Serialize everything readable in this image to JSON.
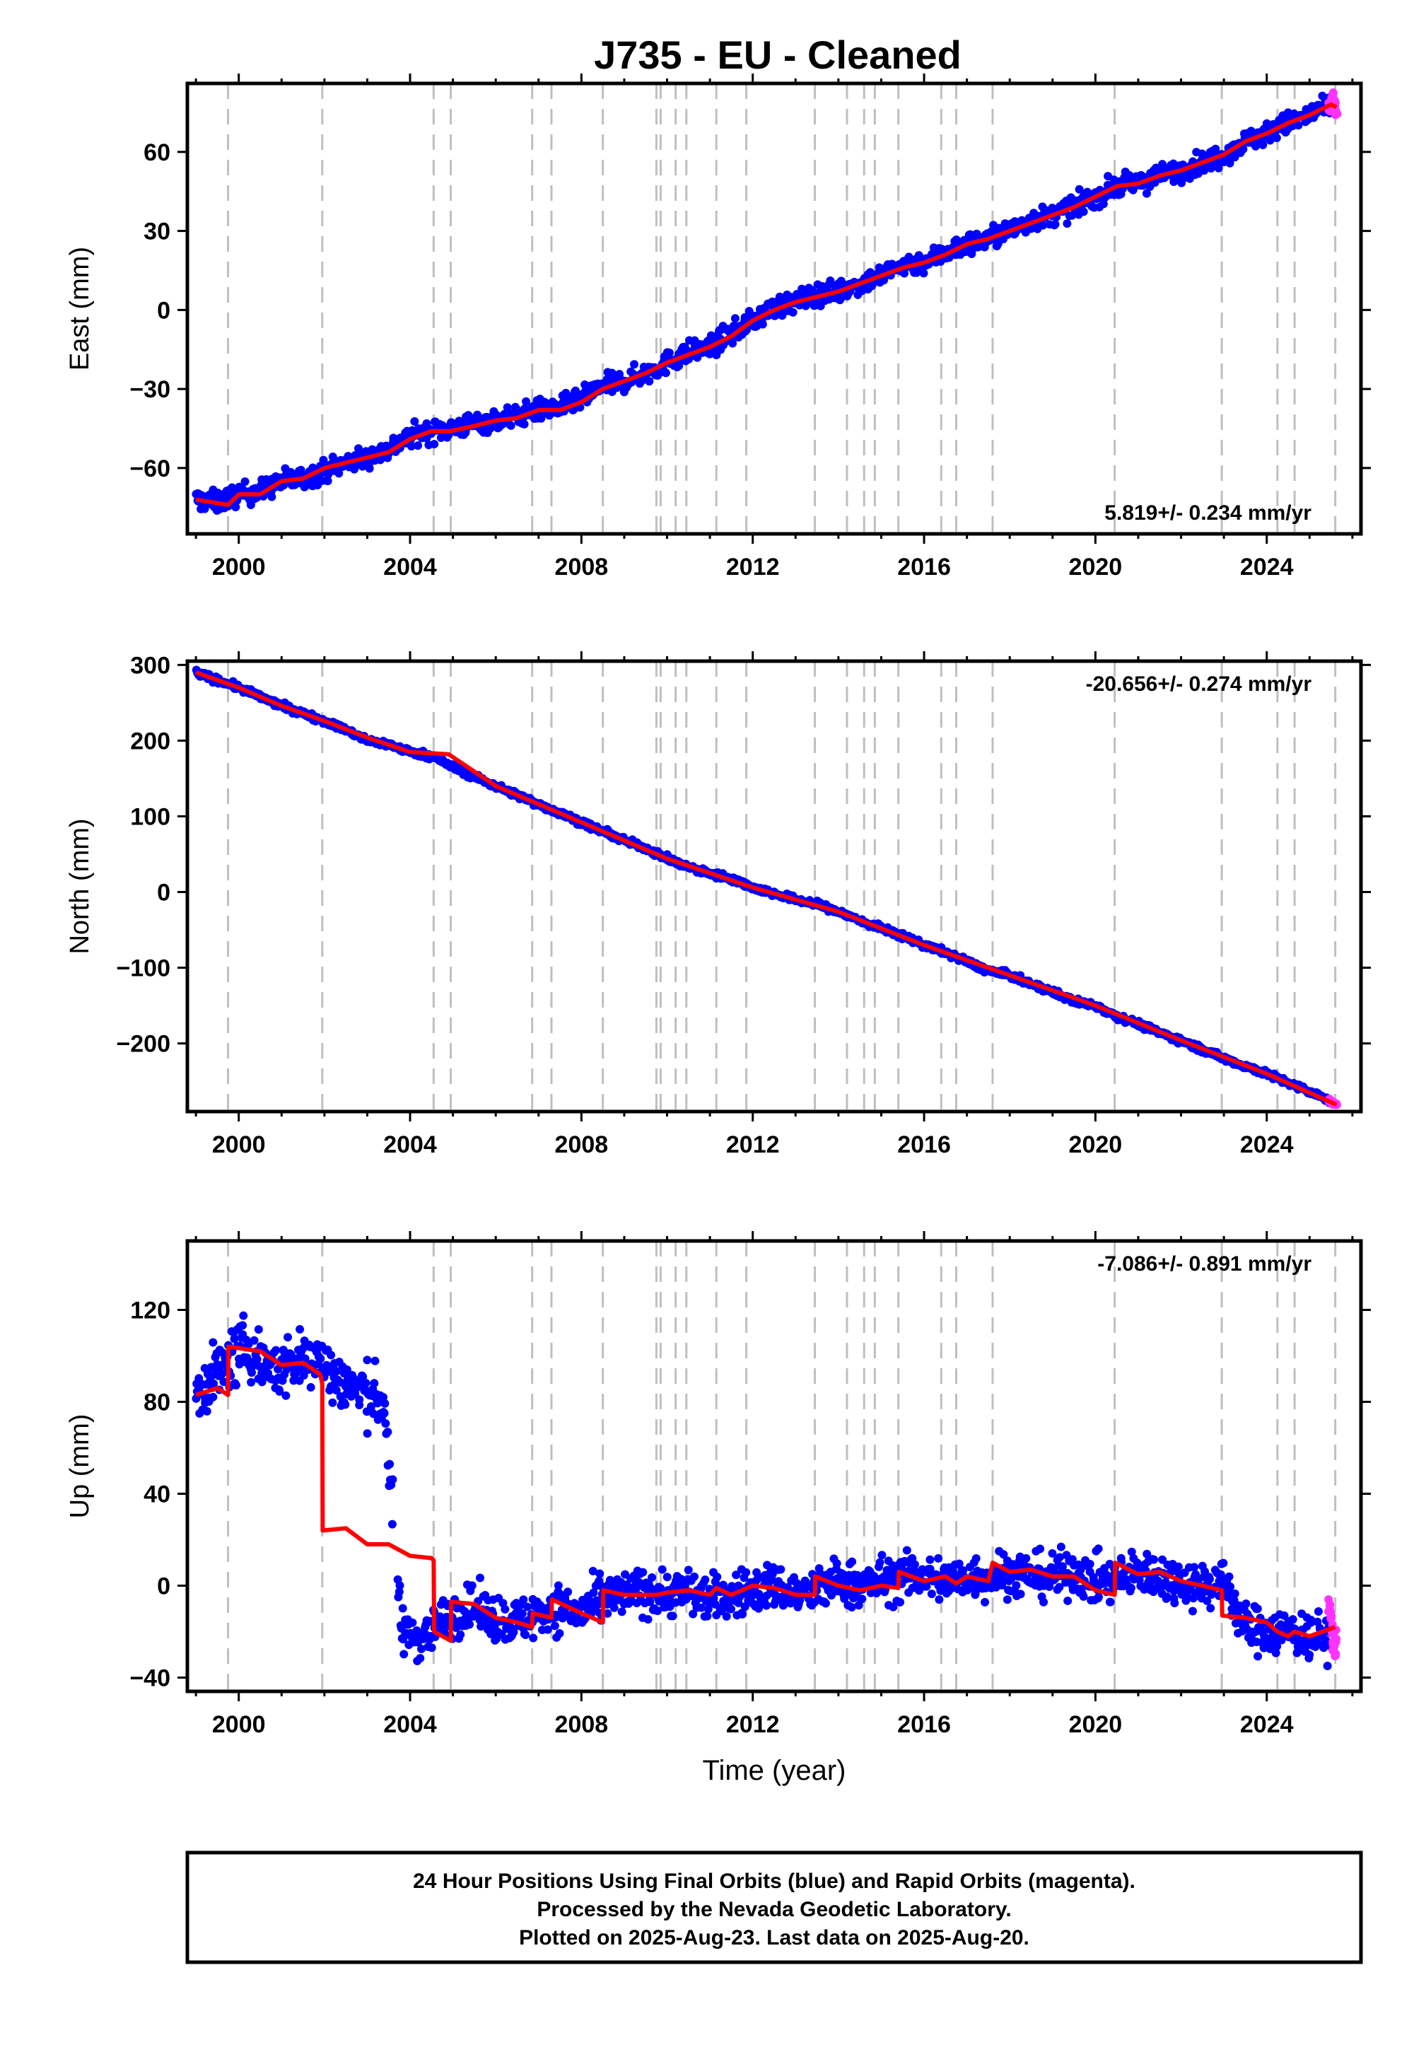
{
  "colors": {
    "final": "#0000ff",
    "rapid": "#ff33ff",
    "model": "#ff0000",
    "steps": "#bfbfbf",
    "frame": "#000000"
  },
  "footer": {
    "line1": "24 Hour Positions Using Final Orbits (blue) and Rapid Orbits (magenta).",
    "line2": "Processed by the Nevada Geodetic Laboratory.",
    "line3": "Plotted on 2025-Aug-23. Last data on 2025-Aug-20."
  },
  "chart_data": [
    {
      "type": "scatter",
      "title": "J735  - EU - Cleaned",
      "ylabel": "East (mm)",
      "xlabel": "",
      "xlim": [
        1998.8,
        2026.2
      ],
      "ylim": [
        -85,
        86
      ],
      "x_ticks": [
        2000,
        2004,
        2008,
        2012,
        2016,
        2020,
        2024
      ],
      "y_ticks": [
        -60,
        -30,
        0,
        30,
        60
      ],
      "rate_label": "5.819+/- 0.234 mm/yr",
      "rate_position": "bottom-right",
      "grid": false,
      "step_epochs": [
        1999.75,
        2001.95,
        2004.55,
        2004.95,
        2006.85,
        2007.3,
        2008.5,
        2009.75,
        2009.85,
        2010.2,
        2010.45,
        2011.15,
        2011.85,
        2013.45,
        2014.2,
        2014.6,
        2014.85,
        2015.4,
        2016.4,
        2016.75,
        2017.6,
        2020.45,
        2022.95,
        2024.25,
        2024.65,
        2025.6
      ],
      "series": [
        {
          "name": "Final Orbits (blue)",
          "x": [
            1999.0,
            1999.5,
            2000.0,
            2000.5,
            2001.0,
            2001.5,
            2002.0,
            2002.5,
            2003.0,
            2003.5,
            2004.0,
            2004.5,
            2005.0,
            2005.5,
            2006.0,
            2006.5,
            2007.0,
            2007.5,
            2008.0,
            2008.5,
            2009.0,
            2009.5,
            2010.0,
            2010.5,
            2011.0,
            2011.5,
            2012.0,
            2012.5,
            2013.0,
            2013.5,
            2014.0,
            2014.5,
            2015.0,
            2015.5,
            2016.0,
            2016.5,
            2017.0,
            2017.5,
            2018.0,
            2018.5,
            2019.0,
            2019.5,
            2020.0,
            2020.5,
            2021.0,
            2021.5,
            2022.0,
            2022.5,
            2023.0,
            2023.5,
            2024.0,
            2024.5,
            2025.0,
            2025.5
          ],
          "y": [
            -72,
            -73,
            -70,
            -69,
            -65,
            -64,
            -61,
            -58,
            -56,
            -53,
            -48,
            -46,
            -45,
            -43,
            -42,
            -40,
            -38,
            -37,
            -34,
            -29,
            -27,
            -24,
            -20,
            -16,
            -14,
            -9,
            -4,
            1,
            3,
            6,
            7,
            10,
            13,
            17,
            18,
            22,
            25,
            27,
            30,
            34,
            36,
            39,
            43,
            47,
            48,
            51,
            53,
            56,
            59,
            64,
            67,
            71,
            74,
            78
          ],
          "spread": 4
        },
        {
          "name": "Rapid Orbits (magenta)",
          "x": [
            2025.45,
            2025.5,
            2025.55,
            2025.6,
            2025.63
          ],
          "y": [
            76,
            79,
            81,
            77,
            75
          ],
          "spread": 3
        }
      ],
      "model": {
        "x": [
          1999.0,
          1999.75,
          2000.0,
          2000.5,
          2001.0,
          2001.5,
          2002.0,
          2002.5,
          2003.0,
          2003.5,
          2004.0,
          2004.5,
          2004.95,
          2005.5,
          2006.0,
          2006.5,
          2007.0,
          2007.5,
          2008.0,
          2008.5,
          2009.0,
          2009.5,
          2010.0,
          2010.5,
          2011.0,
          2011.5,
          2012.0,
          2012.5,
          2013.0,
          2013.5,
          2014.0,
          2014.5,
          2015.0,
          2015.5,
          2016.0,
          2016.5,
          2017.0,
          2017.5,
          2018.0,
          2018.5,
          2019.0,
          2019.5,
          2020.0,
          2020.5,
          2021.0,
          2021.5,
          2022.0,
          2022.5,
          2023.0,
          2023.5,
          2024.0,
          2024.5,
          2025.0,
          2025.5,
          2025.63
        ],
        "y": [
          -72,
          -74,
          -70,
          -70,
          -65,
          -64,
          -60,
          -58,
          -56,
          -54,
          -49,
          -46,
          -46,
          -44,
          -42,
          -41,
          -38,
          -38,
          -35,
          -30,
          -27,
          -24,
          -20,
          -17,
          -14,
          -10,
          -4,
          0,
          3,
          5,
          7,
          10,
          13,
          16,
          18,
          21,
          25,
          27,
          30,
          33,
          36,
          39,
          43,
          47,
          48,
          51,
          53,
          56,
          59,
          64,
          67,
          71,
          74,
          78,
          77
        ]
      }
    },
    {
      "type": "scatter",
      "title": "",
      "ylabel": "North (mm)",
      "xlabel": "",
      "xlim": [
        1998.8,
        2026.2
      ],
      "ylim": [
        -290,
        305
      ],
      "x_ticks": [
        2000,
        2004,
        2008,
        2012,
        2016,
        2020,
        2024
      ],
      "y_ticks": [
        -200,
        -100,
        0,
        100,
        200,
        300
      ],
      "rate_label": "-20.656+/- 0.274 mm/yr",
      "rate_position": "top-right",
      "grid": false,
      "step_epochs": [
        1999.75,
        2001.95,
        2004.55,
        2004.95,
        2006.85,
        2007.3,
        2008.5,
        2009.75,
        2009.85,
        2010.2,
        2010.45,
        2011.15,
        2011.85,
        2013.45,
        2014.2,
        2014.6,
        2014.85,
        2015.4,
        2016.4,
        2016.75,
        2017.6,
        2020.45,
        2022.95,
        2024.25,
        2024.65,
        2025.6
      ],
      "series": [
        {
          "name": "Final Orbits (blue)",
          "x": [
            1999.0,
            1999.5,
            2000.0,
            2000.5,
            2001.0,
            2001.5,
            2002.0,
            2002.5,
            2003.0,
            2003.5,
            2004.0,
            2004.5,
            2005.0,
            2005.5,
            2006.0,
            2006.5,
            2007.0,
            2007.5,
            2008.0,
            2008.5,
            2009.0,
            2009.5,
            2010.0,
            2010.5,
            2011.0,
            2011.5,
            2012.0,
            2012.5,
            2013.0,
            2013.5,
            2014.0,
            2014.5,
            2015.0,
            2015.5,
            2016.0,
            2016.5,
            2017.0,
            2017.5,
            2018.0,
            2018.5,
            2019.0,
            2019.5,
            2020.0,
            2020.5,
            2021.0,
            2021.5,
            2022.0,
            2022.5,
            2023.0,
            2023.5,
            2024.0,
            2024.5,
            2025.0,
            2025.5
          ],
          "y": [
            290,
            280,
            270,
            258,
            246,
            236,
            226,
            214,
            200,
            195,
            185,
            180,
            165,
            152,
            140,
            128,
            116,
            104,
            92,
            80,
            68,
            58,
            44,
            33,
            24,
            18,
            6,
            -2,
            -10,
            -16,
            -26,
            -38,
            -48,
            -58,
            -70,
            -80,
            -92,
            -104,
            -110,
            -122,
            -132,
            -144,
            -150,
            -164,
            -174,
            -186,
            -196,
            -208,
            -220,
            -230,
            -240,
            -252,
            -264,
            -276
          ],
          "spread": 4
        },
        {
          "name": "Rapid Orbits (magenta)",
          "x": [
            2025.45,
            2025.5,
            2025.55,
            2025.6,
            2025.63
          ],
          "y": [
            -275,
            -277,
            -279,
            -280,
            -281
          ],
          "spread": 2
        }
      ],
      "model": {
        "x": [
          1999.0,
          2000.0,
          2001.0,
          2002.0,
          2003.0,
          2004.0,
          2004.9,
          2006.0,
          2008.0,
          2010.0,
          2012.0,
          2014.0,
          2016.0,
          2018.0,
          2020.0,
          2022.0,
          2024.0,
          2025.63
        ],
        "y": [
          290,
          270,
          246,
          226,
          204,
          185,
          182,
          140,
          92,
          44,
          6,
          -26,
          -70,
          -110,
          -150,
          -196,
          -240,
          -281
        ]
      }
    },
    {
      "type": "scatter",
      "title": "",
      "ylabel": "Up (mm)",
      "xlabel": "Time (year)",
      "xlim": [
        1998.8,
        2026.2
      ],
      "ylim": [
        -46,
        150
      ],
      "x_ticks": [
        2000,
        2004,
        2008,
        2012,
        2016,
        2020,
        2024
      ],
      "y_ticks": [
        -40,
        0,
        40,
        80,
        120
      ],
      "rate_label": "-7.086+/- 0.891 mm/yr",
      "rate_position": "top-right",
      "grid": false,
      "step_epochs": [
        1999.75,
        2001.95,
        2004.55,
        2004.95,
        2006.85,
        2007.3,
        2008.5,
        2009.75,
        2009.85,
        2010.2,
        2010.45,
        2011.15,
        2011.85,
        2013.45,
        2014.2,
        2014.6,
        2014.85,
        2015.4,
        2016.4,
        2016.75,
        2017.6,
        2020.45,
        2022.95,
        2024.25,
        2024.65,
        2025.6
      ],
      "series": [
        {
          "name": "Final Orbits (blue)",
          "x": [
            1999.0,
            1999.4,
            1999.8,
            2000.2,
            2000.6,
            2001.0,
            2001.4,
            2001.8,
            2002.2,
            2002.6,
            2003.0,
            2003.4,
            2003.8,
            2004.2,
            2004.6,
            2005.0,
            2005.5,
            2006.0,
            2006.5,
            2007.0,
            2007.5,
            2008.0,
            2008.5,
            2009.0,
            2009.5,
            2010.0,
            2010.5,
            2011.0,
            2011.5,
            2012.0,
            2012.5,
            2013.0,
            2013.5,
            2014.0,
            2014.5,
            2015.0,
            2015.5,
            2016.0,
            2016.5,
            2017.0,
            2017.5,
            2018.0,
            2018.5,
            2019.0,
            2019.5,
            2020.0,
            2020.5,
            2021.0,
            2021.5,
            2022.0,
            2022.5,
            2023.0,
            2023.5,
            2024.0,
            2024.5,
            2025.0,
            2025.5
          ],
          "y": [
            84,
            90,
            98,
            104,
            96,
            94,
            98,
            100,
            92,
            86,
            84,
            80,
            -20,
            -22,
            -18,
            -12,
            -10,
            -14,
            -16,
            -12,
            -10,
            -12,
            -6,
            -4,
            -2,
            -4,
            -2,
            -6,
            -4,
            -2,
            0,
            -4,
            -2,
            2,
            0,
            2,
            4,
            4,
            2,
            4,
            4,
            6,
            4,
            4,
            6,
            2,
            2,
            6,
            4,
            2,
            0,
            2,
            -18,
            -20,
            -20,
            -22,
            -22
          ],
          "spread": 10
        },
        {
          "name": "Rapid Orbits (magenta)",
          "x": [
            2025.45,
            2025.5,
            2025.55,
            2025.6,
            2025.63
          ],
          "y": [
            -8,
            -14,
            -24,
            -30,
            -18
          ],
          "spread": 6
        }
      ],
      "model": {
        "x": [
          1999.0,
          1999.5,
          1999.75,
          1999.76,
          2000.5,
          2001.0,
          2001.5,
          2001.9,
          2001.95,
          2001.96,
          2002.5,
          2003.0,
          2003.5,
          2004.0,
          2004.5,
          2004.55,
          2004.56,
          2004.95,
          2004.96,
          2005.5,
          2006.0,
          2006.5,
          2006.85,
          2006.86,
          2007.3,
          2007.31,
          2008.0,
          2008.5,
          2008.51,
          2009.0,
          2009.75,
          2010.0,
          2010.5,
          2011.0,
          2011.15,
          2011.5,
          2012.0,
          2012.5,
          2013.0,
          2013.45,
          2013.46,
          2014.0,
          2014.5,
          2015.0,
          2015.4,
          2015.41,
          2016.0,
          2016.5,
          2016.75,
          2017.0,
          2017.5,
          2017.6,
          2018.0,
          2018.5,
          2019.0,
          2019.5,
          2020.0,
          2020.45,
          2020.46,
          2021.0,
          2021.5,
          2022.0,
          2022.5,
          2022.95,
          2022.96,
          2023.5,
          2024.0,
          2024.25,
          2024.5,
          2024.65,
          2025.0,
          2025.6
        ],
        "y": [
          83,
          86,
          83,
          104,
          102,
          96,
          97,
          92,
          88,
          24,
          25,
          18,
          18,
          13,
          12,
          11,
          -20,
          -24,
          -7,
          -8,
          -14,
          -16,
          -18,
          -12,
          -14,
          -6,
          -12,
          -16,
          -2,
          -4,
          -4,
          -3,
          -2,
          -4,
          -1,
          -4,
          0,
          -1,
          -4,
          -4,
          4,
          0,
          -2,
          0,
          -1,
          6,
          2,
          4,
          1,
          4,
          2,
          10,
          6,
          7,
          4,
          4,
          -2,
          -4,
          10,
          5,
          6,
          2,
          0,
          -2,
          -13,
          -14,
          -16,
          -20,
          -22,
          -20,
          -22,
          -18
        ]
      }
    }
  ]
}
